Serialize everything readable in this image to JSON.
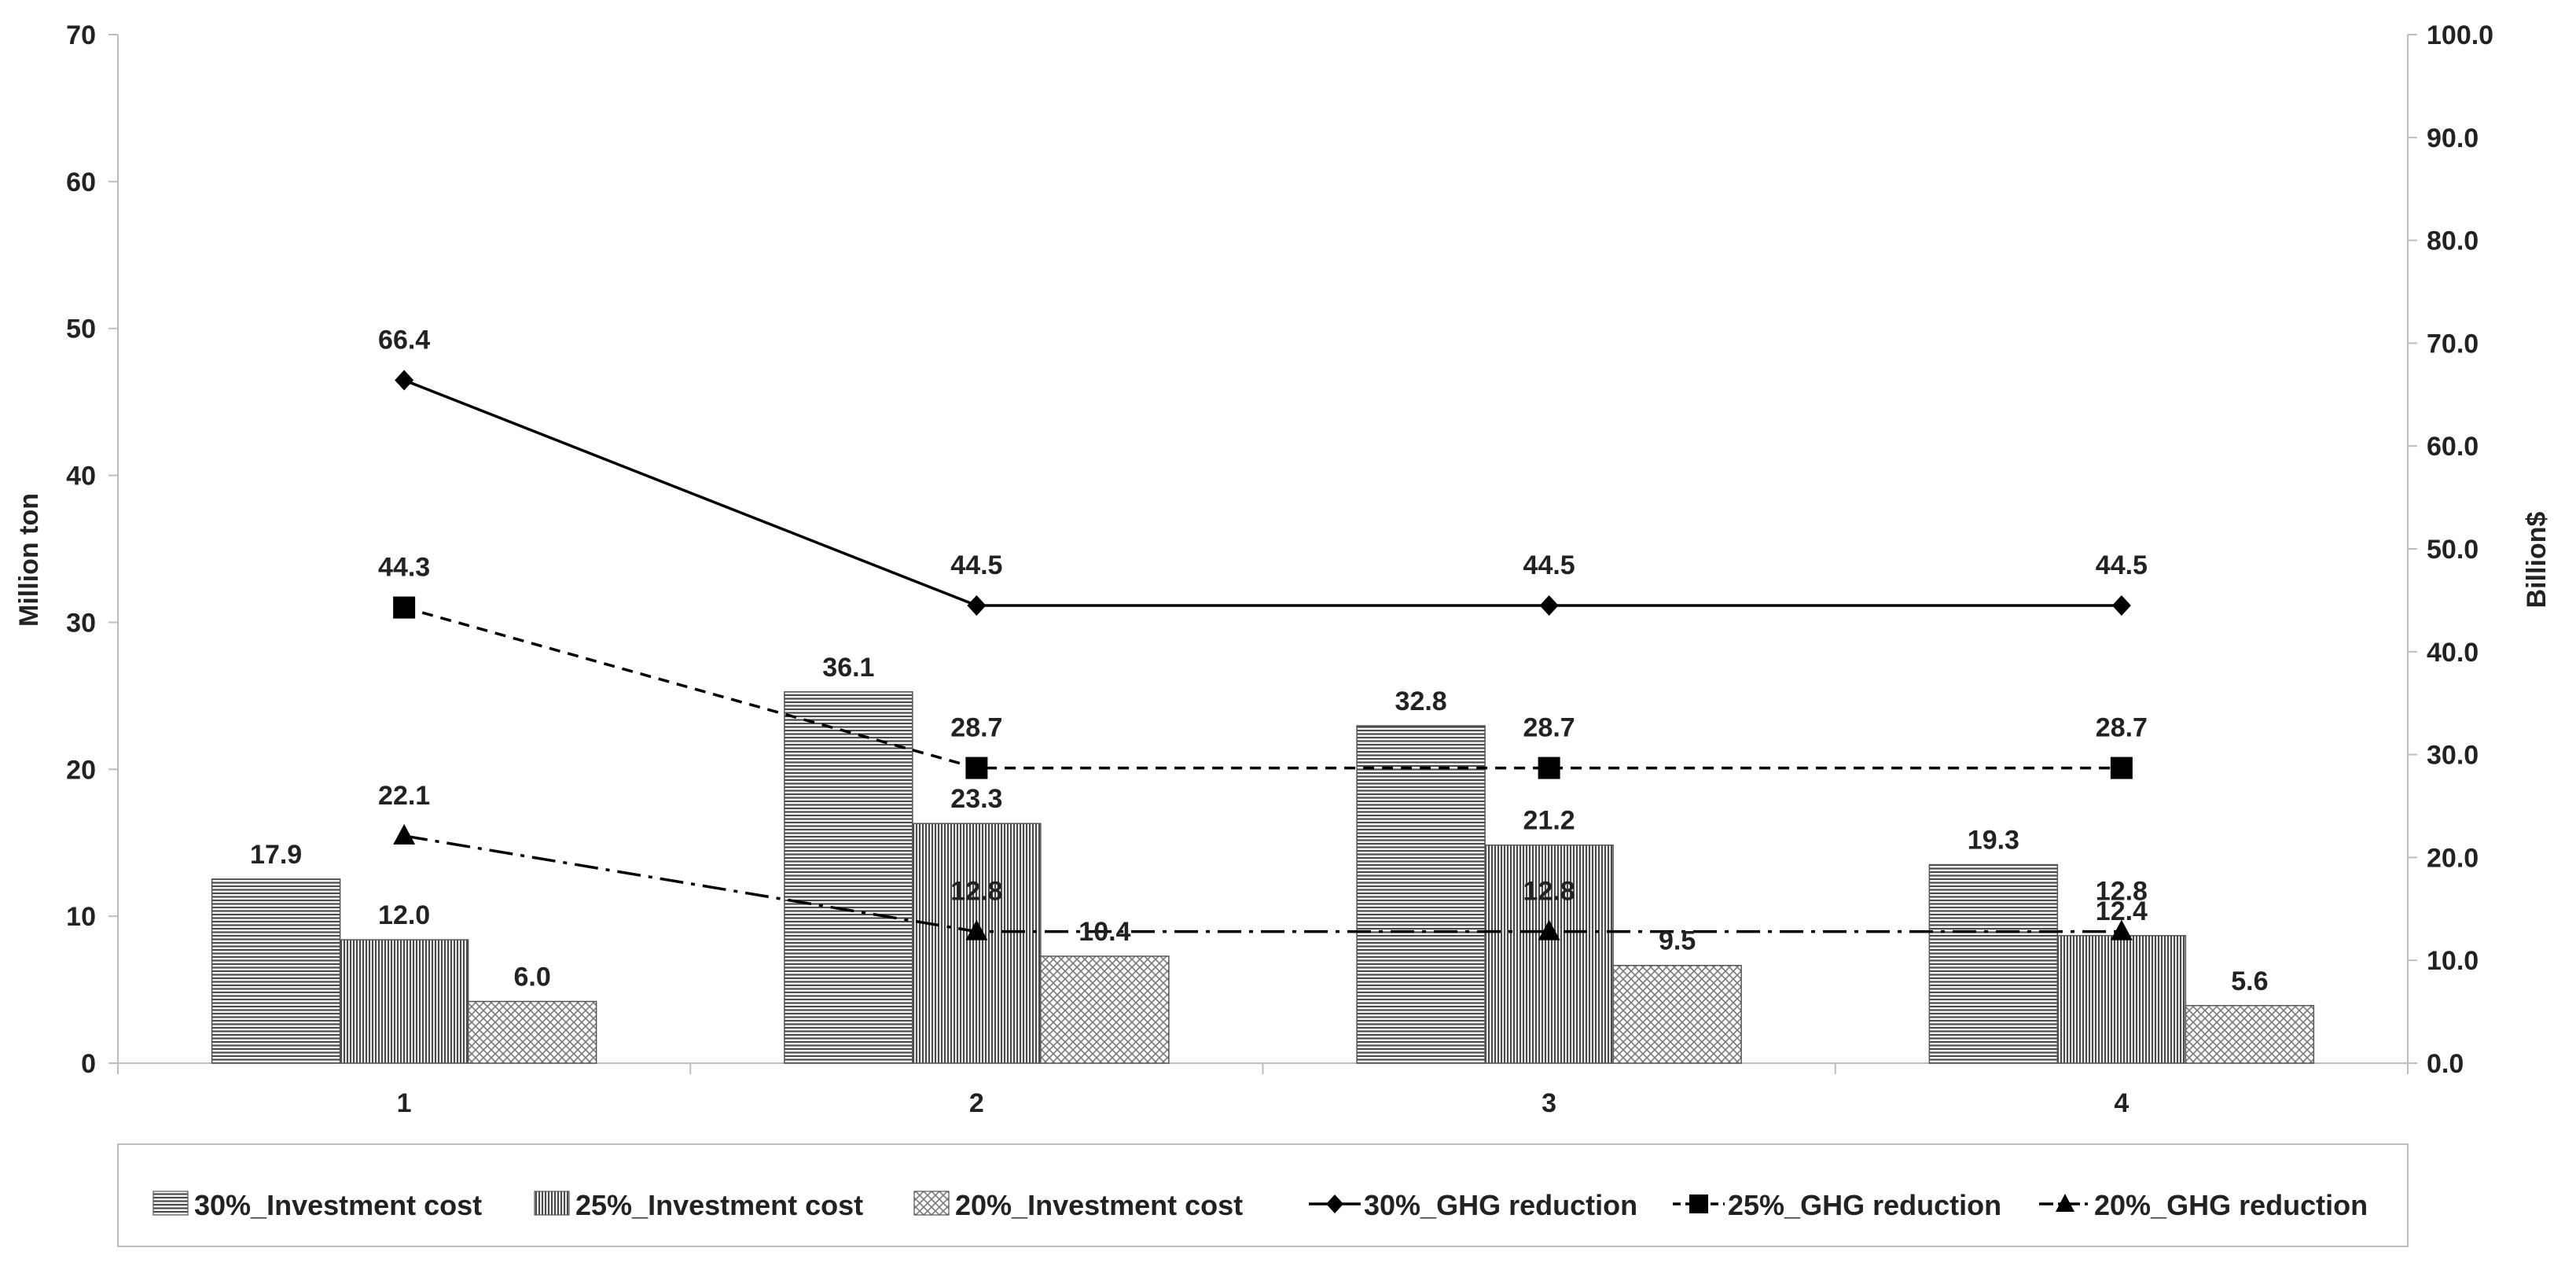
{
  "chart_data": {
    "type": "bar+line",
    "categories": [
      "1",
      "2",
      "3",
      "4"
    ],
    "left_axis": {
      "label": "Million ton",
      "min": 0,
      "max": 70,
      "step": 10,
      "decimals": 0
    },
    "right_axis": {
      "label": "Billion$",
      "min": 0,
      "max": 100,
      "step": 10,
      "decimals": 1
    },
    "bar_series": [
      {
        "name": "30%_Investment cost",
        "axis": "right",
        "pattern": "horizontal",
        "values": [
          17.9,
          36.1,
          32.8,
          19.3
        ]
      },
      {
        "name": "25%_Investment cost",
        "axis": "right",
        "pattern": "vertical",
        "values": [
          12.0,
          23.3,
          21.2,
          12.4
        ]
      },
      {
        "name": "20%_Investment cost",
        "axis": "right",
        "pattern": "crosshatch",
        "values": [
          6.0,
          10.4,
          9.5,
          5.6
        ]
      }
    ],
    "line_series": [
      {
        "name": "30%_GHG reduction",
        "axis": "right",
        "style": "solid",
        "marker": "diamond",
        "values": [
          66.4,
          44.5,
          44.5,
          44.5
        ]
      },
      {
        "name": "25%_GHG reduction",
        "axis": "right",
        "style": "dashed",
        "marker": "square",
        "values": [
          44.3,
          28.7,
          28.7,
          28.7
        ]
      },
      {
        "name": "20%_GHG reduction",
        "axis": "right",
        "style": "dashdot",
        "marker": "triangle",
        "values": [
          22.1,
          12.8,
          12.8,
          12.8
        ]
      }
    ],
    "grid": false,
    "legend_position": "bottom"
  }
}
